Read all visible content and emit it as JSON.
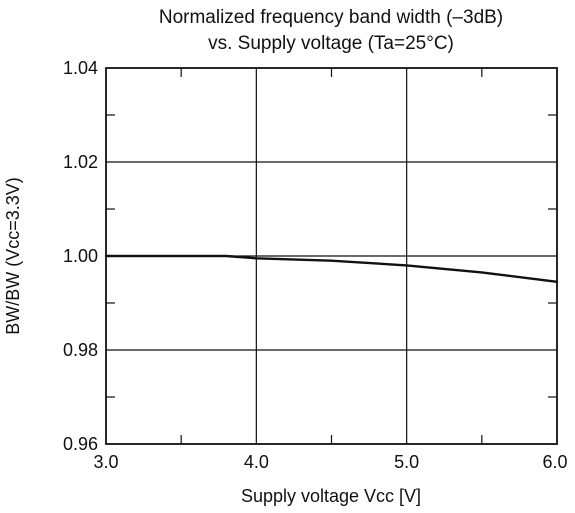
{
  "chart_data": {
    "type": "line",
    "title_lines": [
      "Normalized frequency band width (–3dB)",
      "vs. Supply voltage (Ta=25°C)"
    ],
    "xlabel": "Supply voltage Vcc [V]",
    "ylabel": "BW/BW (Vcc=3.3V)",
    "xlim": [
      3.0,
      6.0
    ],
    "ylim": [
      0.96,
      1.04
    ],
    "x_ticks": [
      3.0,
      4.0,
      5.0,
      6.0
    ],
    "x_tick_labels": [
      "3.0",
      "4.0",
      "5.0",
      "6.0"
    ],
    "y_ticks": [
      0.96,
      0.98,
      1.0,
      1.02,
      1.04
    ],
    "y_tick_labels": [
      "0.96",
      "0.98",
      "1.00",
      "1.02",
      "1.04"
    ],
    "x_minor_ticks": [
      3.5,
      4.5,
      5.5
    ],
    "y_minor_ticks": [
      0.97,
      0.99,
      1.01,
      1.03
    ],
    "grid": true,
    "series": [
      {
        "x": [
          3.0,
          3.5,
          3.8,
          4.0,
          4.5,
          5.0,
          5.5,
          6.0
        ],
        "y": [
          1.0,
          1.0,
          1.0,
          0.9995,
          0.999,
          0.998,
          0.9965,
          0.9945
        ]
      }
    ]
  }
}
